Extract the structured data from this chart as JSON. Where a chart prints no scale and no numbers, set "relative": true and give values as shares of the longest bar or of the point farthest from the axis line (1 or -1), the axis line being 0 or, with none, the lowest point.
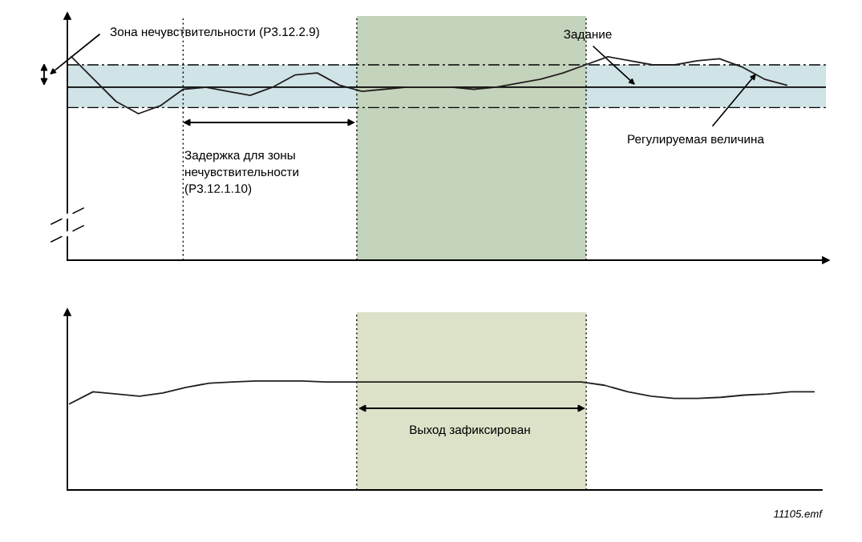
{
  "chart_data": [
    {
      "type": "line",
      "relative": true,
      "categories": [
        null,
        null,
        null,
        null,
        null,
        null,
        null,
        null,
        null,
        null,
        null,
        null,
        null,
        null,
        null,
        null,
        null,
        null,
        null,
        null,
        null,
        null,
        null,
        null,
        null,
        null,
        null,
        null,
        null,
        null,
        null,
        null,
        null
      ],
      "series": [
        {
          "color": "#231f20",
          "values": [
            1.0,
            0.89,
            0.78,
            0.72,
            0.76,
            0.84,
            0.85,
            0.83,
            0.81,
            0.85,
            0.91,
            0.92,
            0.86,
            0.83,
            0.84,
            0.85,
            0.85,
            0.85,
            0.84,
            0.85,
            0.87,
            0.89,
            0.92,
            0.96,
            1.0,
            0.98,
            0.96,
            0.96,
            0.98,
            0.99,
            0.95,
            0.89,
            0.86
          ]
        }
      ],
      "ref_lines": [
        {
          "axis": "y",
          "value": 0.85,
          "color": "#000000",
          "line_style": "solid"
        }
      ],
      "bands": [
        {
          "axis": "y",
          "from": 0.75,
          "to": 0.96,
          "color": "#d0e3e6"
        }
      ],
      "annotations": [
        "Зона нечувствительности (P3.12.2.9)",
        "Задержка для зоны\nнечувствительности\n(P3.12.1.10)",
        "Задание",
        "Регулируемая величина"
      ]
    },
    {
      "type": "line",
      "relative": true,
      "categories": [
        null,
        null,
        null,
        null,
        null,
        null,
        null,
        null,
        null,
        null,
        null,
        null,
        null,
        null,
        null,
        null,
        null,
        null,
        null,
        null,
        null,
        null,
        null,
        null,
        null,
        null,
        null,
        null,
        null,
        null,
        null,
        null,
        null
      ],
      "series": [
        {
          "color": "#231f20",
          "values": [
            0.79,
            0.9,
            0.88,
            0.86,
            0.89,
            0.94,
            0.98,
            0.99,
            1.0,
            1.0,
            1.0,
            0.99,
            0.99,
            0.99,
            0.99,
            0.99,
            0.99,
            0.99,
            0.99,
            0.99,
            0.99,
            0.99,
            0.99,
            0.96,
            0.9,
            0.86,
            0.84,
            0.84,
            0.85,
            0.87,
            0.88,
            0.9,
            0.9
          ]
        }
      ],
      "annotations": [
        "Выход зафиксирован",
        "11105.emf"
      ]
    }
  ]
}
